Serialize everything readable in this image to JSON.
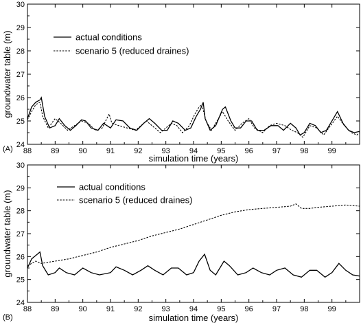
{
  "chart_data": [
    {
      "type": "line",
      "panel_label": "(A)",
      "xlabel": "simulation time (years)",
      "ylabel": "groundwater table (m)",
      "xlim": [
        88,
        100
      ],
      "ylim": [
        24,
        30
      ],
      "xticks": [
        88,
        89,
        90,
        91,
        92,
        93,
        94,
        95,
        96,
        97,
        98,
        99
      ],
      "xtick_labels": [
        "88",
        "89",
        "90",
        "91",
        "92",
        "93",
        "94",
        "95",
        "96",
        "97",
        "98",
        "99"
      ],
      "yticks": [
        24,
        25,
        26,
        27,
        28,
        29,
        30
      ],
      "ytick_labels": [
        "24",
        "25",
        "26",
        "27",
        "28",
        "29",
        "30"
      ],
      "legend_position": "top-left",
      "series": [
        {
          "name": "actual conditions",
          "style": "solid",
          "color": "#000000",
          "points": [
            [
              88.0,
              25.1
            ],
            [
              88.15,
              25.6
            ],
            [
              88.3,
              25.8
            ],
            [
              88.45,
              25.9
            ],
            [
              88.5,
              26.0
            ],
            [
              88.62,
              25.2
            ],
            [
              88.8,
              24.7
            ],
            [
              89.0,
              24.8
            ],
            [
              89.15,
              25.1
            ],
            [
              89.35,
              24.8
            ],
            [
              89.55,
              24.6
            ],
            [
              89.75,
              24.8
            ],
            [
              89.95,
              25.05
            ],
            [
              90.1,
              25.0
            ],
            [
              90.3,
              24.7
            ],
            [
              90.55,
              24.6
            ],
            [
              90.75,
              24.9
            ],
            [
              91.0,
              24.7
            ],
            [
              91.2,
              25.05
            ],
            [
              91.45,
              25.0
            ],
            [
              91.7,
              24.7
            ],
            [
              91.95,
              24.6
            ],
            [
              92.2,
              24.9
            ],
            [
              92.4,
              25.1
            ],
            [
              92.6,
              24.9
            ],
            [
              92.85,
              24.6
            ],
            [
              93.05,
              24.6
            ],
            [
              93.25,
              25.0
            ],
            [
              93.45,
              24.9
            ],
            [
              93.7,
              24.6
            ],
            [
              93.9,
              24.7
            ],
            [
              94.1,
              25.2
            ],
            [
              94.25,
              25.5
            ],
            [
              94.35,
              25.8
            ],
            [
              94.42,
              25.1
            ],
            [
              94.6,
              24.6
            ],
            [
              94.8,
              24.8
            ],
            [
              95.05,
              25.5
            ],
            [
              95.15,
              25.6
            ],
            [
              95.35,
              25.0
            ],
            [
              95.5,
              24.7
            ],
            [
              95.7,
              24.7
            ],
            [
              95.9,
              25.0
            ],
            [
              96.1,
              25.0
            ],
            [
              96.3,
              24.6
            ],
            [
              96.55,
              24.6
            ],
            [
              96.8,
              24.8
            ],
            [
              97.05,
              24.8
            ],
            [
              97.25,
              24.6
            ],
            [
              97.5,
              24.9
            ],
            [
              97.7,
              24.7
            ],
            [
              97.85,
              24.4
            ],
            [
              98.0,
              24.5
            ],
            [
              98.2,
              24.9
            ],
            [
              98.4,
              24.8
            ],
            [
              98.6,
              24.5
            ],
            [
              98.8,
              24.6
            ],
            [
              99.05,
              25.1
            ],
            [
              99.2,
              25.4
            ],
            [
              99.4,
              24.9
            ],
            [
              99.6,
              24.6
            ],
            [
              99.8,
              24.5
            ],
            [
              100.0,
              24.55
            ]
          ]
        },
        {
          "name": "scenario 5 (reduced draines)",
          "style": "dashed",
          "color": "#000000",
          "points": [
            [
              88.0,
              25.05
            ],
            [
              88.15,
              25.4
            ],
            [
              88.3,
              25.7
            ],
            [
              88.45,
              25.8
            ],
            [
              88.55,
              25.2
            ],
            [
              88.75,
              24.7
            ],
            [
              89.0,
              25.1
            ],
            [
              89.2,
              24.9
            ],
            [
              89.45,
              24.6
            ],
            [
              89.7,
              24.8
            ],
            [
              89.95,
              25.0
            ],
            [
              90.2,
              24.9
            ],
            [
              90.45,
              24.6
            ],
            [
              90.7,
              24.7
            ],
            [
              90.95,
              25.3
            ],
            [
              91.05,
              24.9
            ],
            [
              91.3,
              24.8
            ],
            [
              91.6,
              24.7
            ],
            [
              91.9,
              24.6
            ],
            [
              92.1,
              24.8
            ],
            [
              92.3,
              25.0
            ],
            [
              92.5,
              24.8
            ],
            [
              92.8,
              24.5
            ],
            [
              93.0,
              24.7
            ],
            [
              93.2,
              24.9
            ],
            [
              93.4,
              24.8
            ],
            [
              93.6,
              24.5
            ],
            [
              93.85,
              24.8
            ],
            [
              94.05,
              25.3
            ],
            [
              94.2,
              25.6
            ],
            [
              94.3,
              25.7
            ],
            [
              94.45,
              25.0
            ],
            [
              94.65,
              24.6
            ],
            [
              94.9,
              25.1
            ],
            [
              95.05,
              25.4
            ],
            [
              95.25,
              25.0
            ],
            [
              95.5,
              24.6
            ],
            [
              95.75,
              24.9
            ],
            [
              96.0,
              25.1
            ],
            [
              96.2,
              24.7
            ],
            [
              96.5,
              24.5
            ],
            [
              96.75,
              24.8
            ],
            [
              97.0,
              24.9
            ],
            [
              97.3,
              24.8
            ],
            [
              97.55,
              24.6
            ],
            [
              97.75,
              24.5
            ],
            [
              97.95,
              24.3
            ],
            [
              98.2,
              24.8
            ],
            [
              98.45,
              24.7
            ],
            [
              98.7,
              24.4
            ],
            [
              98.95,
              24.8
            ],
            [
              99.2,
              25.2
            ],
            [
              99.45,
              24.8
            ],
            [
              99.7,
              24.5
            ],
            [
              99.9,
              24.4
            ],
            [
              100.0,
              24.5
            ]
          ]
        }
      ]
    },
    {
      "type": "line",
      "panel_label": "(B)",
      "xlabel": "simulation time (years)",
      "ylabel": "groundwater table (m)",
      "xlim": [
        88,
        100
      ],
      "ylim": [
        24,
        30
      ],
      "xticks": [
        88,
        89,
        90,
        91,
        92,
        93,
        94,
        95,
        96,
        97,
        98,
        99
      ],
      "xtick_labels": [
        "88",
        "89",
        "90",
        "91",
        "92",
        "93",
        "94",
        "95",
        "96",
        "97",
        "98",
        "99"
      ],
      "yticks": [
        24,
        25,
        26,
        27,
        28,
        29,
        30
      ],
      "ytick_labels": [
        "24",
        "25",
        "26",
        "27",
        "28",
        "29",
        "30"
      ],
      "legend_position": "top-center",
      "series": [
        {
          "name": "actual conditions",
          "style": "solid",
          "color": "#000000",
          "points": [
            [
              88.0,
              25.5
            ],
            [
              88.15,
              25.9
            ],
            [
              88.3,
              26.05
            ],
            [
              88.45,
              26.2
            ],
            [
              88.55,
              25.6
            ],
            [
              88.75,
              25.2
            ],
            [
              89.0,
              25.3
            ],
            [
              89.15,
              25.5
            ],
            [
              89.4,
              25.3
            ],
            [
              89.7,
              25.2
            ],
            [
              90.0,
              25.5
            ],
            [
              90.3,
              25.3
            ],
            [
              90.6,
              25.2
            ],
            [
              91.0,
              25.3
            ],
            [
              91.2,
              25.55
            ],
            [
              91.5,
              25.4
            ],
            [
              91.8,
              25.2
            ],
            [
              92.1,
              25.4
            ],
            [
              92.35,
              25.6
            ],
            [
              92.6,
              25.4
            ],
            [
              92.9,
              25.2
            ],
            [
              93.2,
              25.5
            ],
            [
              93.45,
              25.5
            ],
            [
              93.75,
              25.2
            ],
            [
              94.0,
              25.3
            ],
            [
              94.2,
              25.8
            ],
            [
              94.4,
              26.1
            ],
            [
              94.6,
              25.4
            ],
            [
              94.8,
              25.2
            ],
            [
              95.1,
              25.8
            ],
            [
              95.3,
              25.6
            ],
            [
              95.6,
              25.2
            ],
            [
              95.9,
              25.3
            ],
            [
              96.15,
              25.5
            ],
            [
              96.45,
              25.3
            ],
            [
              96.75,
              25.2
            ],
            [
              97.0,
              25.4
            ],
            [
              97.3,
              25.5
            ],
            [
              97.6,
              25.2
            ],
            [
              97.9,
              25.1
            ],
            [
              98.2,
              25.4
            ],
            [
              98.45,
              25.4
            ],
            [
              98.75,
              25.1
            ],
            [
              99.0,
              25.3
            ],
            [
              99.25,
              25.7
            ],
            [
              99.5,
              25.4
            ],
            [
              99.75,
              25.2
            ],
            [
              100.0,
              25.15
            ]
          ]
        },
        {
          "name": "scenario 5 (reduced draines)",
          "style": "dashed",
          "color": "#000000",
          "points": [
            [
              88.0,
              25.6
            ],
            [
              88.3,
              25.8
            ],
            [
              88.5,
              25.7
            ],
            [
              89.0,
              25.8
            ],
            [
              89.5,
              25.9
            ],
            [
              90.0,
              26.05
            ],
            [
              90.5,
              26.2
            ],
            [
              91.0,
              26.4
            ],
            [
              91.5,
              26.55
            ],
            [
              92.0,
              26.7
            ],
            [
              92.5,
              26.9
            ],
            [
              93.0,
              27.05
            ],
            [
              93.5,
              27.2
            ],
            [
              94.0,
              27.4
            ],
            [
              94.5,
              27.6
            ],
            [
              95.0,
              27.8
            ],
            [
              95.5,
              27.95
            ],
            [
              96.0,
              28.05
            ],
            [
              96.5,
              28.1
            ],
            [
              97.0,
              28.15
            ],
            [
              97.5,
              28.2
            ],
            [
              97.7,
              28.3
            ],
            [
              97.9,
              28.1
            ],
            [
              98.2,
              28.1
            ],
            [
              98.5,
              28.15
            ],
            [
              99.0,
              28.2
            ],
            [
              99.5,
              28.25
            ],
            [
              100.0,
              28.2
            ]
          ]
        }
      ]
    }
  ]
}
